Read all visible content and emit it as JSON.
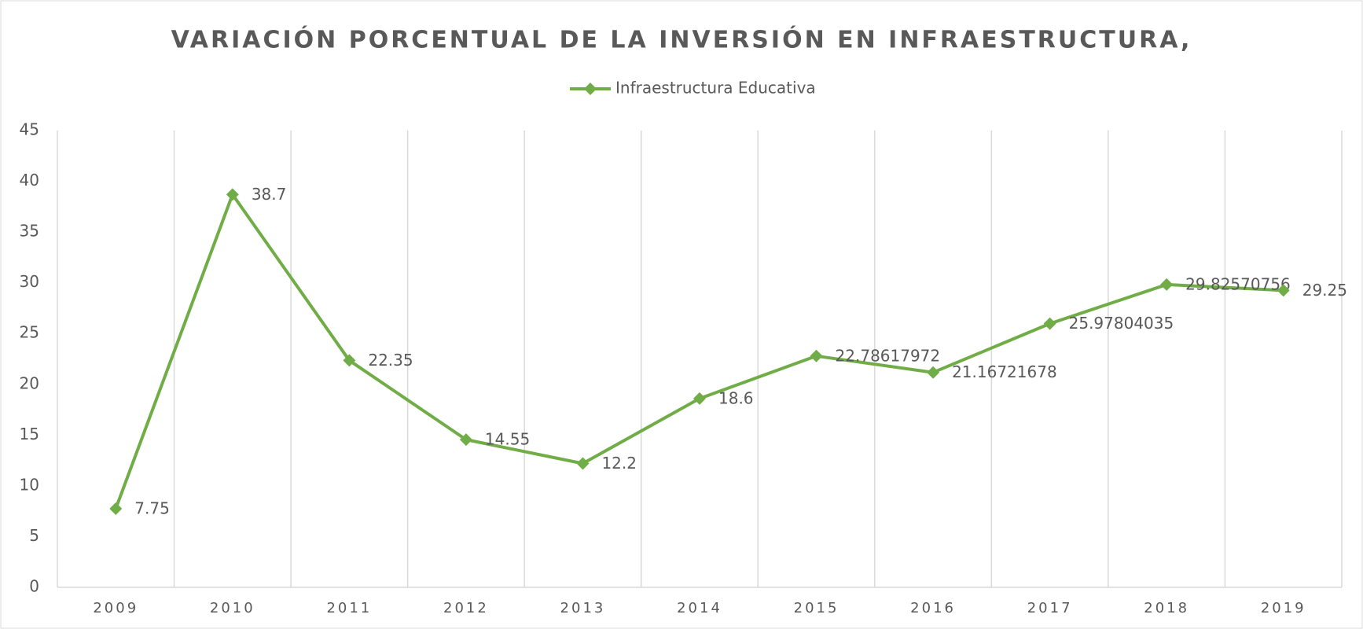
{
  "chart_data": {
    "type": "line",
    "title": "VARIACIÓN PORCENTUAL DE LA INVERSIÓN EN INFRAESTRUCTURA,",
    "categories": [
      "2009",
      "2010",
      "2011",
      "2012",
      "2013",
      "2014",
      "2015",
      "2016",
      "2017",
      "2018",
      "2019"
    ],
    "series": [
      {
        "name": "Infraestructura Educativa",
        "color": "#70ad47",
        "values": [
          7.75,
          38.7,
          22.35,
          14.55,
          12.2,
          18.6,
          22.78617972,
          21.16721678,
          25.97804035,
          29.82570756,
          29.25
        ]
      }
    ],
    "ylim": [
      0,
      45
    ],
    "yticks": [
      0,
      5,
      10,
      15,
      20,
      25,
      30,
      35,
      40,
      45
    ],
    "legend": "top"
  }
}
